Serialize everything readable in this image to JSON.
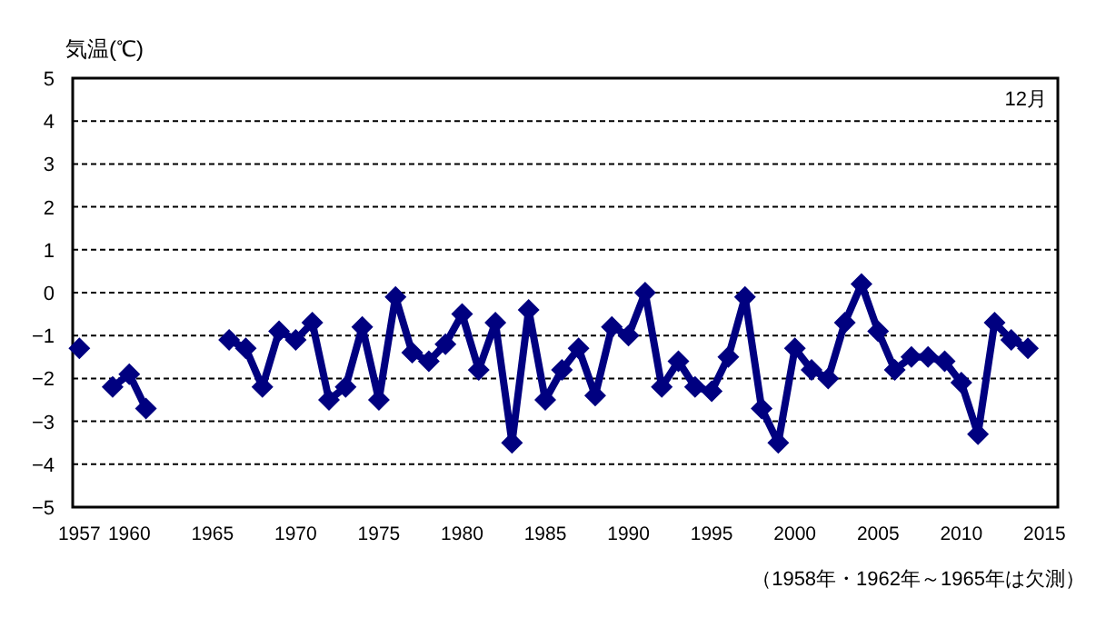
{
  "chart_data": {
    "type": "line",
    "ylabel": "気温(℃)",
    "annotations": [
      "12月",
      "（1958年・1962年～1965年は欠測）"
    ],
    "series": [
      {
        "color": "#000080",
        "x": [
          1957
        ],
        "values": [
          -1.3
        ]
      },
      {
        "color": "#000080",
        "x": [
          1959,
          1960,
          1961
        ],
        "values": [
          -2.2,
          -1.9,
          -2.7
        ]
      },
      {
        "color": "#000080",
        "x": [
          1966,
          1967,
          1968,
          1969,
          1970,
          1971,
          1972,
          1973,
          1974,
          1975,
          1976,
          1977,
          1978,
          1979,
          1980,
          1981,
          1982,
          1983,
          1984,
          1985,
          1986,
          1987,
          1988,
          1989,
          1990,
          1991,
          1992,
          1993,
          1994,
          1995,
          1996,
          1997,
          1998,
          1999,
          2000,
          2001,
          2002,
          2003,
          2004,
          2005,
          2006,
          2007,
          2008,
          2009,
          2010,
          2011,
          2012,
          2013,
          2014
        ],
        "values": [
          -1.1,
          -1.3,
          -2.2,
          -0.9,
          -1.1,
          -0.7,
          -2.5,
          -2.2,
          -0.8,
          -2.5,
          -0.1,
          -1.4,
          -1.6,
          -1.2,
          -0.5,
          -1.8,
          -0.7,
          -3.5,
          -0.4,
          -2.5,
          -1.8,
          -1.3,
          -2.4,
          -0.8,
          -1.0,
          0.0,
          -2.2,
          -1.6,
          -2.2,
          -2.3,
          -1.5,
          -0.1,
          -2.7,
          -3.5,
          -1.3,
          -1.8,
          -2.0,
          -0.7,
          0.2,
          -0.9,
          -1.8,
          -1.5,
          -1.5,
          -1.6,
          -2.1,
          -3.3,
          -0.7,
          -1.1,
          -1.3
        ]
      }
    ],
    "xlim": [
      1956.6,
      2015.8
    ],
    "ylim": [
      -5,
      5
    ],
    "xticks": [
      1957,
      1960,
      1965,
      1970,
      1975,
      1980,
      1985,
      1990,
      1995,
      2000,
      2005,
      2010,
      2015
    ],
    "yticks": [
      -5,
      -4,
      -3,
      -2,
      -1,
      0,
      1,
      2,
      3,
      4,
      5
    ],
    "grid": "y",
    "marker": "diamond",
    "line_style": "solid"
  }
}
